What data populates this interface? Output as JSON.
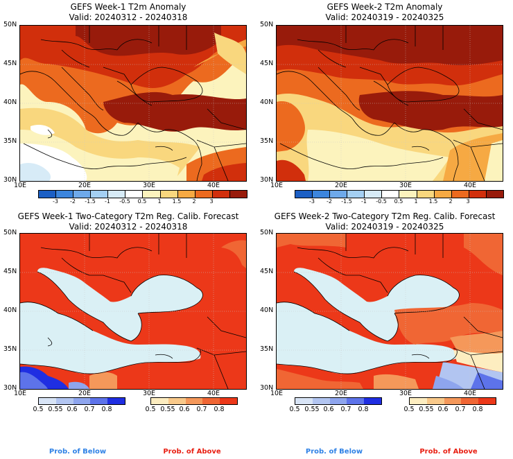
{
  "panels": [
    {
      "title": "GEFS Week-1 T2m Anomaly",
      "valid": "Valid: 20240312 - 20240318"
    },
    {
      "title": "GEFS Week-2 T2m Anomaly",
      "valid": "Valid: 20240319 - 20240325"
    },
    {
      "title": "GEFS Week-1 Two-Category T2m Reg. Calib. Forecast",
      "valid": "Valid: 20240312 - 20240318"
    },
    {
      "title": "GEFS Week-2 Two-Category T2m Reg. Calib. Forecast",
      "valid": "Valid: 20240319 - 20240325"
    }
  ],
  "lat_labels": [
    "50N",
    "45N",
    "40N",
    "35N",
    "30N"
  ],
  "lon_labels": [
    "10E",
    "20E",
    "30E",
    "40E"
  ],
  "anomaly_colorbar": {
    "labels": [
      "-3",
      "-2",
      "-1.5",
      "-1",
      "-0.5",
      "0.5",
      "1",
      "1.5",
      "2",
      "3"
    ],
    "colors": [
      "#1c5fc4",
      "#3c85dd",
      "#6ea9ea",
      "#a4cff2",
      "#d7ebf7",
      "#ffffff",
      "#fcf3bd",
      "#f9d77e",
      "#f6a943",
      "#ec6a1f",
      "#d12f0c",
      "#981b0b"
    ]
  },
  "prob_below": {
    "labels": [
      "0.5",
      "0.55",
      "0.6",
      "0.7",
      "0.8"
    ],
    "colors": [
      "#d8e4f6",
      "#b2c5f1",
      "#8ea5ee",
      "#5d73ea",
      "#1f2ee2"
    ]
  },
  "prob_above": {
    "labels": [
      "0.5",
      "0.55",
      "0.6",
      "0.7",
      "0.8"
    ],
    "colors": [
      "#fdedc0",
      "#f9c98a",
      "#f5985a",
      "#f06634",
      "#ec3819"
    ]
  },
  "footer": {
    "below": "Prob. of Below",
    "above": "Prob. of Above",
    "below_color": "#2f82e6",
    "above_color": "#e81f12"
  }
}
